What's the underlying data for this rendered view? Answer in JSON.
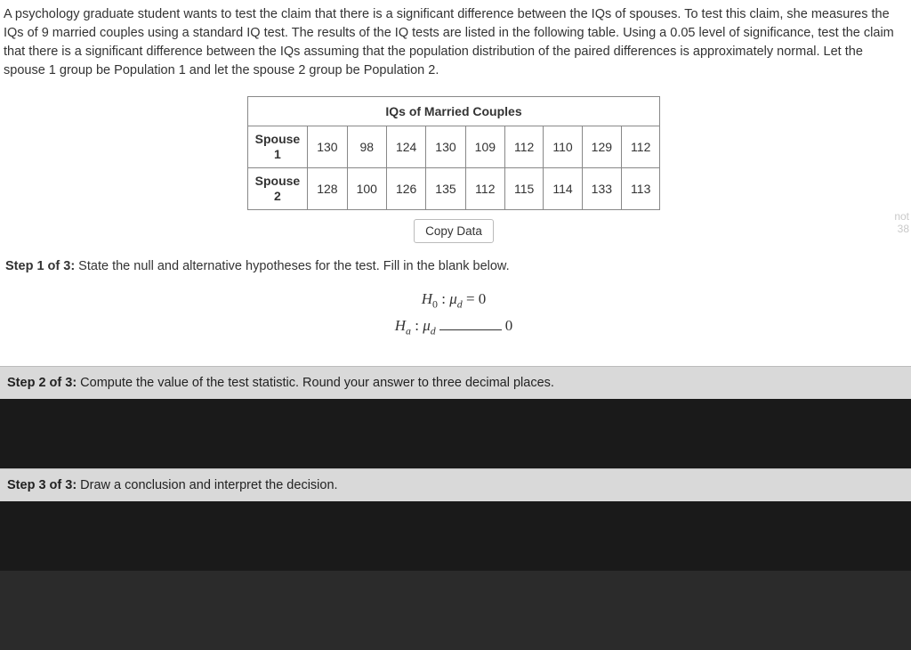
{
  "problem": {
    "text": "A psychology graduate student wants to test the claim that there is a significant difference between the IQs of spouses. To test this claim, she measures the IQs of 9 married couples using a standard IQ test. The results of the IQ tests are listed in the following table. Using a 0.05 level of significance, test the claim that there is a significant difference between the IQs assuming that the population distribution of the paired differences is approximately normal. Let the spouse 1 group be Population 1 and let the spouse 2 group be Population 2."
  },
  "table": {
    "title": "IQs of Married Couples",
    "row1_label_a": "Spouse",
    "row1_label_b": "1",
    "row2_label_a": "Spouse",
    "row2_label_b": "2",
    "spouse1": {
      "c0": "130",
      "c1": "98",
      "c2": "124",
      "c3": "130",
      "c4": "109",
      "c5": "112",
      "c6": "110",
      "c7": "129",
      "c8": "112"
    },
    "spouse2": {
      "c0": "128",
      "c1": "100",
      "c2": "126",
      "c3": "135",
      "c4": "112",
      "c5": "115",
      "c6": "114",
      "c7": "133",
      "c8": "113"
    },
    "columns": 9,
    "border_color": "#888888",
    "background_color": "#ffffff",
    "header_fontweight": 700
  },
  "copy_button": {
    "label": "Copy Data"
  },
  "step1": {
    "label": "Step 1 of 3:",
    "text": " State the null and alternative hypotheses for the test. Fill in the blank below.",
    "h0_prefix": "H",
    "h0_sub": "0",
    "colon": " : ",
    "mu": "μ",
    "mu_sub": "d",
    "eq": " = ",
    "zero": "0",
    "ha_prefix": "H",
    "ha_sub": "a"
  },
  "step2": {
    "label": "Step 2 of 3:",
    "text": " Compute the value of the test statistic. Round your answer to three decimal places."
  },
  "step3": {
    "label": "Step 3 of 3:",
    "text": " Draw a conclusion and interpret the decision."
  },
  "side": {
    "l1": "not",
    "l2": "38"
  },
  "colors": {
    "panel_white": "#ffffff",
    "panel_gray": "#d9d9d9",
    "panel_dark": "#1a1a1a",
    "body_bg": "#2b2b2b",
    "text": "#333333"
  }
}
